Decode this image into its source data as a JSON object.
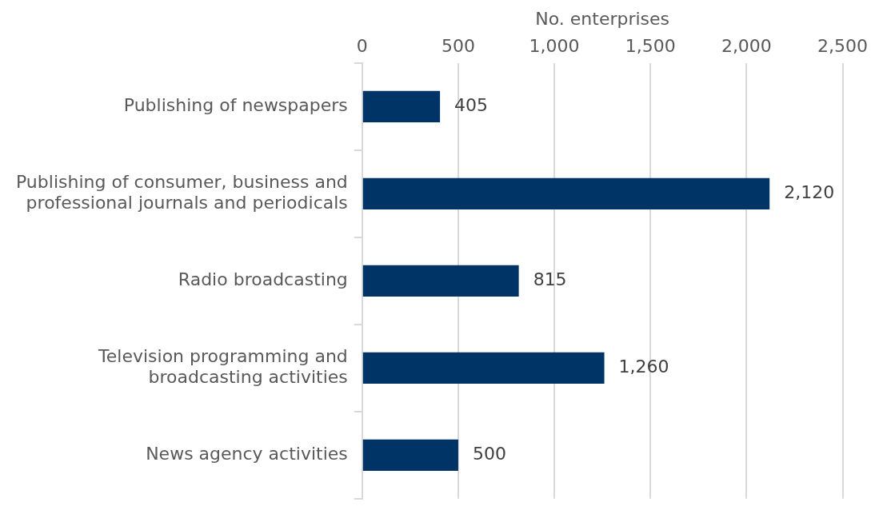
{
  "chart_data": {
    "type": "bar",
    "orientation": "horizontal",
    "xlabel": "No. enterprises",
    "categories": [
      "Publishing of newspapers",
      "Publishing of consumer, business and professional journals and periodicals",
      "Radio broadcasting",
      "Television programming and broadcasting activities",
      "News agency activities"
    ],
    "values": [
      405,
      2120,
      815,
      1260,
      500
    ],
    "value_labels": [
      "405",
      "2,120",
      "815",
      "1,260",
      "500"
    ],
    "color": "#003366",
    "xlim": [
      0,
      2500
    ],
    "xticks": [
      0,
      500,
      {
        "value": 1000,
        "label": "1,000"
      },
      {
        "value": 1500,
        "label": "1,500"
      },
      {
        "value": 2000,
        "label": "2,000"
      },
      {
        "value": 2500,
        "label": "2,500"
      }
    ],
    "grid": "x",
    "legend": false
  }
}
